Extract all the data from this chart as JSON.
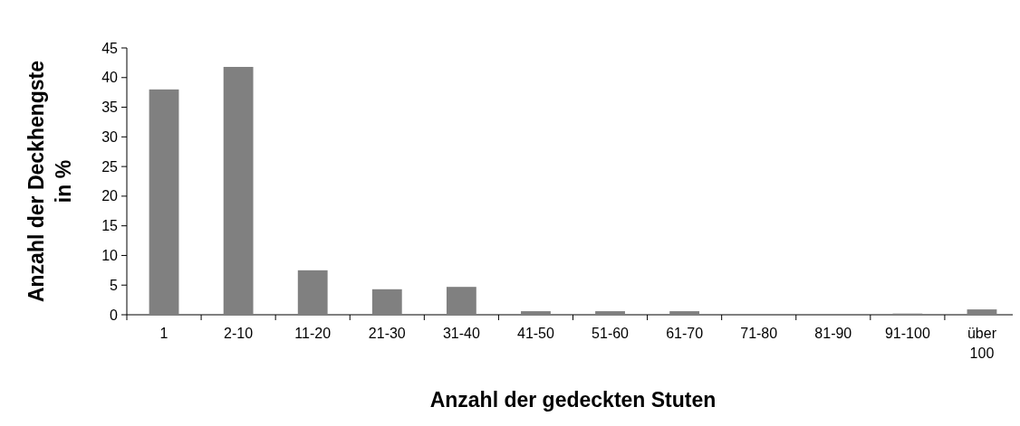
{
  "chart_data": {
    "type": "bar",
    "xlabel": "Anzahl der gedeckten Stuten",
    "ylabel": "Anzahl der Deckhengste in %",
    "categories": [
      "1",
      "2-10",
      "11-20",
      "21-30",
      "31-40",
      "41-50",
      "51-60",
      "61-70",
      "71-80",
      "81-90",
      "91-100",
      "über 100"
    ],
    "values": [
      38,
      41.8,
      7.5,
      4.3,
      4.7,
      0.6,
      0.6,
      0.6,
      0,
      0,
      0.2,
      0.9
    ],
    "color": "#808080",
    "ylim": [
      0,
      45
    ],
    "yticks": [
      0,
      5,
      10,
      15,
      20,
      25,
      30,
      35,
      40,
      45
    ],
    "grid": false
  }
}
